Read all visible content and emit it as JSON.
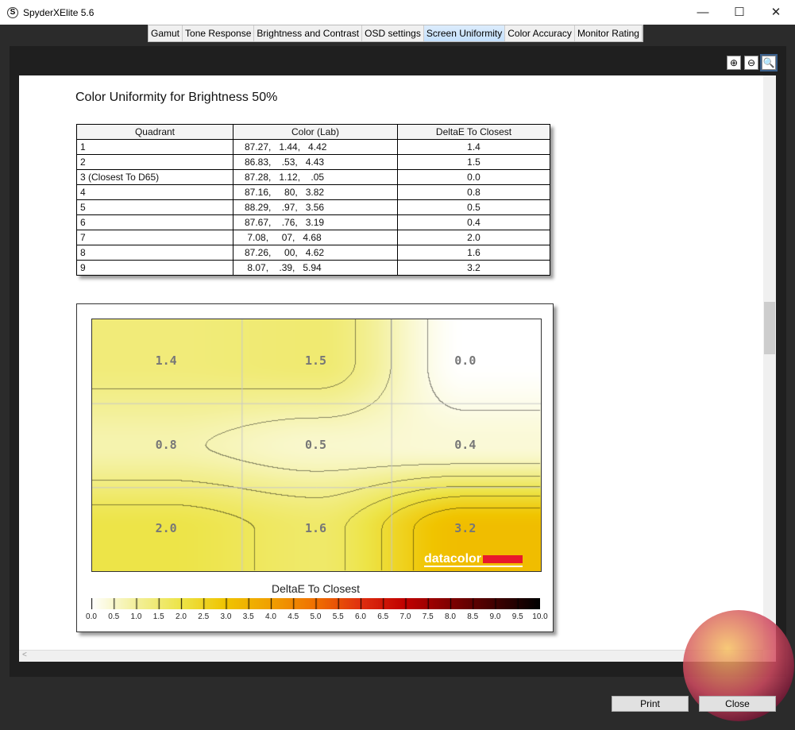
{
  "window": {
    "title": "SpyderXElite 5.6",
    "app_icon": "S",
    "minimize": "—",
    "maximize": "☐",
    "close": "✕"
  },
  "tabs": [
    {
      "label": "Gamut"
    },
    {
      "label": "Tone Response"
    },
    {
      "label": "Brightness and Contrast"
    },
    {
      "label": "OSD settings"
    },
    {
      "label": "Screen Uniformity",
      "active": true
    },
    {
      "label": "Color Accuracy"
    },
    {
      "label": "Monitor Rating"
    }
  ],
  "zoom_buttons": {
    "zoom_in": "⊕",
    "zoom_out": "⊖",
    "zoom_fit": "🔍"
  },
  "report": {
    "heading": "Color Uniformity for Brightness 50%",
    "table": {
      "headers": [
        "Quadrant",
        "Color (Lab)",
        "DeltaE To Closest"
      ],
      "rows": [
        [
          "1",
          "87.27,   1.44,   4.42",
          "1.4"
        ],
        [
          "2",
          "86.83,    .53,   4.43",
          "1.5"
        ],
        [
          "3 (Closest To D65)",
          "87.28,   1.12,    .05",
          "0.0"
        ],
        [
          "4",
          "87.16,     80,   3.82",
          "0.8"
        ],
        [
          "5",
          "88.29,    .97,   3.56",
          "0.5"
        ],
        [
          "6",
          "87.67,    .76,   3.19",
          "0.4"
        ],
        [
          "7",
          " 7.08,     07,   4.68",
          "2.0"
        ],
        [
          "8",
          "87.26,     00,   4.62",
          "1.6"
        ],
        [
          "9",
          " 8.07,    .39,   5.94",
          "3.2"
        ]
      ]
    }
  },
  "chart_data": {
    "type": "heatmap",
    "grid": [
      [
        1.4,
        1.5,
        0.0
      ],
      [
        0.8,
        0.5,
        0.4
      ],
      [
        2.0,
        1.6,
        3.2
      ]
    ],
    "labels": [
      "1.4",
      "1.5",
      "0.0",
      "0.8",
      "0.5",
      "0.4",
      "2.0",
      "1.6",
      "3.2"
    ],
    "legend_title": "DeltaE To Closest",
    "scale_range": [
      0,
      10
    ],
    "scale_ticks": [
      "0.0",
      "0.5",
      "1.0",
      "1.5",
      "2.0",
      "2.5",
      "3.0",
      "3.5",
      "4.0",
      "4.5",
      "5.0",
      "5.5",
      "6.0",
      "6.5",
      "7.0",
      "7.5",
      "8.0",
      "8.5",
      "9.0",
      "9.5",
      "10.0"
    ],
    "colormap": [
      "#ffffff",
      "#f3f09a",
      "#ede448",
      "#f0c400",
      "#f0a000",
      "#f07000",
      "#e03010",
      "#c00000",
      "#800000",
      "#400000",
      "#000000"
    ],
    "logo": "datacolor",
    "logo_color": "#e8192c"
  },
  "buttons": {
    "print": "Print",
    "close": "Close"
  },
  "scroll": {
    "left_arrow": "<"
  }
}
